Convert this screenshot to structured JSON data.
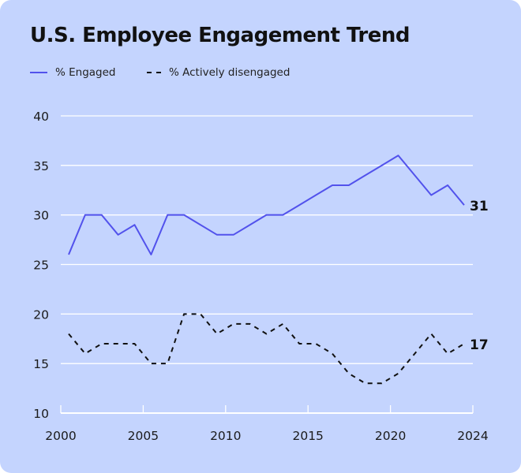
{
  "chart_data": {
    "type": "line",
    "title": "U.S. Employee Engagement Trend",
    "x": [
      2000,
      2001,
      2002,
      2003,
      2004,
      2005,
      2006,
      2007,
      2008,
      2009,
      2010,
      2011,
      2012,
      2013,
      2014,
      2015,
      2016,
      2017,
      2018,
      2019,
      2020,
      2021,
      2022,
      2023,
      2024
    ],
    "series": [
      {
        "name": "% Engaged",
        "color": "#5252ec",
        "dash": false,
        "values": [
          26,
          30,
          30,
          28,
          29,
          26,
          30,
          30,
          29,
          28,
          28,
          29,
          30,
          30,
          31,
          32,
          33,
          33,
          34,
          35,
          36,
          34,
          32,
          33,
          31
        ],
        "end_label": "31"
      },
      {
        "name": "% Actively disengaged",
        "color": "#111111",
        "dash": true,
        "values": [
          18,
          16,
          17,
          17,
          17,
          15,
          15,
          20,
          20,
          18,
          19,
          19,
          18,
          19,
          17,
          17,
          16,
          14,
          13,
          13,
          14,
          16,
          18,
          16,
          17
        ],
        "end_label": "17"
      }
    ],
    "x_ticks": [
      "2000",
      "2005",
      "2010",
      "2015",
      "2020",
      "2024"
    ],
    "y_ticks": [
      "40",
      "35",
      "30",
      "25",
      "20",
      "15",
      "10"
    ],
    "ylim": [
      10,
      40
    ],
    "xlabel": "",
    "ylabel": "",
    "grid": "horizontal",
    "legend": "top-left",
    "background": "#c4d4fe"
  }
}
